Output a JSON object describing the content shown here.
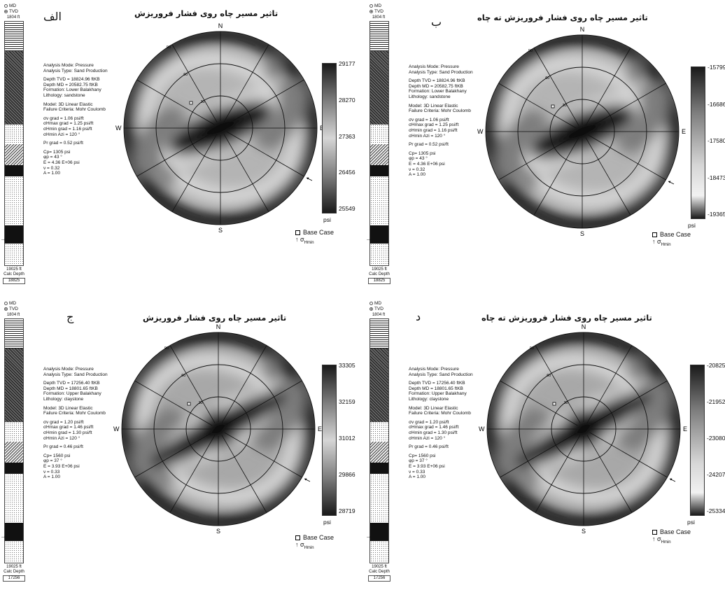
{
  "panels": [
    {
      "letter": "الف",
      "title": "تاثیر مسیر چاه روی فشار فروریزش",
      "md_label": "MD",
      "tvd_label": "TVD",
      "track_top": "1804 ft",
      "track_bottom": "19025 ft",
      "calc_depth_label": "Calc Depth",
      "calc_depth_value": "18825",
      "analysis_mode": "Analysis Mode: Pressure",
      "analysis_type": "Analysis Type: Sand Production",
      "depth_tvd": "Depth TVD = 18824.96 ftKB",
      "depth_md": "Depth MD = 20582.75 ftKB",
      "formation": "Formation: Lower Balakhany",
      "lithology": "Lithology: sandstone",
      "model": "Model: 3D Linear Elastic",
      "failure": "Failure Criteria: Mohr Coulomb",
      "sv_grad": "σv grad = 1.06 psi/ft",
      "shmax_grad": "σHmax grad = 1.25 psi/ft",
      "shmin_grad": "σHmin grad = 1.16 psi/ft",
      "shmin_azi": "σHmin Azi = 120 °",
      "pr_grad": "Pr grad = 0.52 psi/ft",
      "cp": "Cp= 1305 psi",
      "phi": "φp = 43 °",
      "e_mod": "E = 4.36 E+06 psi",
      "nu": "ν = 0.32",
      "a_val": "A = 1.00",
      "ticks": [
        "29177",
        "28270",
        "27363",
        "26456",
        "25549"
      ],
      "unit": "psi",
      "cbar_inverted": false,
      "variant": "sand",
      "compass": {
        "n": "N",
        "s": "S",
        "e": "E",
        "w": "W"
      },
      "ring_labels": [
        "30",
        "60",
        "90"
      ],
      "legend_base": "Base Case",
      "legend_sigma": "σ",
      "legend_sigma_sub": "Hmin",
      "colors": {
        "dark": "#1a1a1a",
        "mid": "#7d7d7d",
        "light": "#d6d6d6"
      }
    },
    {
      "letter": "ب",
      "title": "تاثیر مسیر چاه روی فشار فروریزش ته چاه",
      "md_label": "MD",
      "tvd_label": "TVD",
      "track_top": "1804 ft",
      "track_bottom": "19025 ft",
      "calc_depth_label": "Calc Depth",
      "calc_depth_value": "18825",
      "analysis_mode": "Analysis Mode: Pressure",
      "analysis_type": "Analysis Type: Sand Production",
      "depth_tvd": "Depth TVD = 18824.96 ftKB",
      "depth_md": "Depth MD = 20582.75 ftKB",
      "formation": "Formation: Lower Balakhany",
      "lithology": "Lithology: sandstone",
      "model": "Model: 3D Linear Elastic",
      "failure": "Failure Criteria: Mohr Coulomb",
      "sv_grad": "σv grad = 1.06 psi/ft",
      "shmax_grad": "σHmax grad = 1.25 psi/ft",
      "shmin_grad": "σHmin grad = 1.16 psi/ft",
      "shmin_azi": "σHmin Azi = 120 °",
      "pr_grad": "Pr grad = 0.52 psi/ft",
      "cp": "Cp= 1305 psi",
      "phi": "φp = 43 °",
      "e_mod": "E = 4.36 E+06 psi",
      "nu": "ν = 0.32",
      "a_val": "A = 1.00",
      "ticks": [
        "-15799",
        "-16686",
        "-17580",
        "-18473",
        "-19365"
      ],
      "unit": "psi",
      "cbar_inverted": true,
      "variant": "sand",
      "compass": {
        "n": "N",
        "s": "S",
        "e": "E",
        "w": "W"
      },
      "ring_labels": [
        "30",
        "60",
        "90"
      ],
      "legend_base": "Base Case",
      "legend_sigma": "σ",
      "legend_sigma_sub": "Hmin",
      "colors": {
        "dark": "#1a1a1a",
        "mid": "#7d7d7d",
        "light": "#d6d6d6"
      }
    },
    {
      "letter": "ج",
      "title": "تاثیر مسیر چاه روی فشار فروریزش",
      "md_label": "MD",
      "tvd_label": "TVD",
      "track_top": "1804 ft",
      "track_bottom": "19025 ft",
      "calc_depth_label": "Calc Depth",
      "calc_depth_value": "17256",
      "analysis_mode": "Analysis Mode: Pressure",
      "analysis_type": "Analysis Type: Sand Production",
      "depth_tvd": "Depth TVD = 17256.40 ftKB",
      "depth_md": "Depth MD = 18801.65 ftKB",
      "formation": "Formation: Upper Balakhany",
      "lithology": "Lithology: claystone",
      "model": "Model: 3D Linear Elastic",
      "failure": "Failure Criteria: Mohr Coulomb",
      "sv_grad": "σv grad = 1.20 psi/ft",
      "shmax_grad": "σHmax grad = 1.46 psi/ft",
      "shmin_grad": "σHmin grad = 1.30 psi/ft",
      "shmin_azi": "σHmin Azi = 120 °",
      "pr_grad": "Pr grad = 0.46 psi/ft",
      "cp": "Cp= 1560 psi",
      "phi": "φp = 37 °",
      "e_mod": "E = 3.93 E+06 psi",
      "nu": "ν = 0.33",
      "a_val": "A = 1.00",
      "ticks": [
        "33305",
        "32159",
        "31012",
        "29866",
        "28719"
      ],
      "unit": "psi",
      "cbar_inverted": false,
      "variant": "clay",
      "compass": {
        "n": "N",
        "s": "S",
        "e": "E",
        "w": "W"
      },
      "ring_labels": [
        "30",
        "60",
        "90"
      ],
      "legend_base": "Base Case",
      "legend_sigma": "σ",
      "legend_sigma_sub": "Hmin",
      "colors": {
        "dark": "#1a1a1a",
        "mid": "#7d7d7d",
        "light": "#d6d6d6"
      }
    },
    {
      "letter": "د",
      "title": "تاثیر مسیر چاه روی فشار فروریزش ته چاه",
      "md_label": "MD",
      "tvd_label": "TVD",
      "track_top": "1804 ft",
      "track_bottom": "19025 ft",
      "calc_depth_label": "Calc Depth",
      "calc_depth_value": "17256",
      "analysis_mode": "Analysis Mode: Pressure",
      "analysis_type": "Analysis Type: Sand Production",
      "depth_tvd": "Depth TVD = 17256.40 ftKB",
      "depth_md": "Depth MD = 18801.65 ftKB",
      "formation": "Formation: Upper Balakhany",
      "lithology": "Lithology: claystone",
      "model": "Model: 3D Linear Elastic",
      "failure": "Failure Criteria: Mohr Coulomb",
      "sv_grad": "σv grad = 1.20 psi/ft",
      "shmax_grad": "σHmax grad = 1.46 psi/ft",
      "shmin_grad": "σHmin grad = 1.30 psi/ft",
      "shmin_azi": "σHmin Azi = 120 °",
      "pr_grad": "Pr grad = 0.46 psi/ft",
      "cp": "Cp= 1560 psi",
      "phi": "φp = 37 °",
      "e_mod": "E = 3.93 E+06 psi",
      "nu": "ν = 0.33",
      "a_val": "A = 1.00",
      "ticks": [
        "-20825",
        "-21952",
        "-23080",
        "-24207",
        "-25334"
      ],
      "unit": "psi",
      "cbar_inverted": true,
      "variant": "clay",
      "compass": {
        "n": "N",
        "s": "S",
        "e": "E",
        "w": "W"
      },
      "ring_labels": [
        "30",
        "60",
        "90"
      ],
      "legend_base": "Base Case",
      "legend_sigma": "σ",
      "legend_sigma_sub": "Hmin",
      "colors": {
        "dark": "#1a1a1a",
        "mid": "#7d7d7d",
        "light": "#d6d6d6"
      }
    }
  ]
}
